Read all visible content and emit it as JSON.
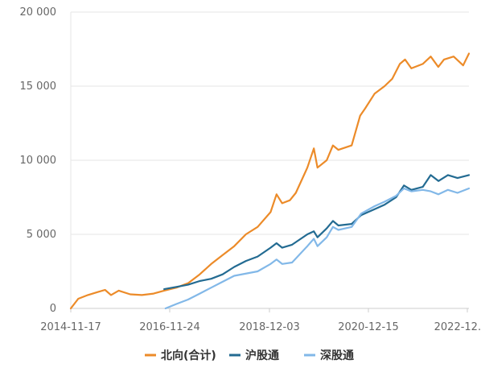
{
  "chart_data": {
    "type": "line",
    "xlabel": "",
    "ylabel": "",
    "x_range": [
      "2014-11-17",
      "2023-06-30"
    ],
    "ylim": [
      0,
      20000
    ],
    "y_ticks": [
      0,
      5000,
      10000,
      15000,
      20000
    ],
    "y_tick_labels": [
      "0",
      "5 000",
      "10 000",
      "15 000",
      "20 000"
    ],
    "x_tick_labels": [
      "2014-11-17",
      "2016-11-24",
      "2018-12-03",
      "2020-12-15",
      "2022-12..."
    ],
    "grid": "horizontal",
    "legend_position": "bottom",
    "colors": {
      "north": "#ec8b29",
      "sh": "#236b92",
      "sz": "#82b8e8",
      "grid": "#e6e6e6",
      "axis": "#cccccc"
    },
    "series": [
      {
        "name": "北向(合计)",
        "color": "#ec8b29",
        "points": [
          [
            "2014-11-17",
            0
          ],
          [
            "2015-01-15",
            650
          ],
          [
            "2015-04-01",
            900
          ],
          [
            "2015-06-15",
            1100
          ],
          [
            "2015-08-15",
            1250
          ],
          [
            "2015-10-01",
            900
          ],
          [
            "2015-12-01",
            1200
          ],
          [
            "2016-03-01",
            950
          ],
          [
            "2016-06-01",
            900
          ],
          [
            "2016-09-01",
            1000
          ],
          [
            "2016-11-24",
            1200
          ],
          [
            "2017-03-01",
            1400
          ],
          [
            "2017-06-01",
            1700
          ],
          [
            "2017-09-01",
            2300
          ],
          [
            "2017-12-01",
            3000
          ],
          [
            "2018-03-01",
            3600
          ],
          [
            "2018-06-01",
            4200
          ],
          [
            "2018-09-01",
            5000
          ],
          [
            "2018-12-03",
            5500
          ],
          [
            "2019-03-15",
            6500
          ],
          [
            "2019-05-01",
            7700
          ],
          [
            "2019-06-15",
            7100
          ],
          [
            "2019-08-15",
            7300
          ],
          [
            "2019-10-01",
            7800
          ],
          [
            "2019-12-31",
            9500
          ],
          [
            "2020-02-20",
            10800
          ],
          [
            "2020-03-20",
            9500
          ],
          [
            "2020-06-01",
            10000
          ],
          [
            "2020-07-20",
            11000
          ],
          [
            "2020-09-01",
            10700
          ],
          [
            "2020-12-15",
            11000
          ],
          [
            "2021-02-20",
            13000
          ],
          [
            "2021-04-01",
            13500
          ],
          [
            "2021-06-15",
            14500
          ],
          [
            "2021-09-01",
            15000
          ],
          [
            "2021-11-01",
            15500
          ],
          [
            "2021-12-31",
            16500
          ],
          [
            "2022-02-10",
            16800
          ],
          [
            "2022-04-01",
            16200
          ],
          [
            "2022-06-30",
            16500
          ],
          [
            "2022-09-01",
            17000
          ],
          [
            "2022-10-31",
            16300
          ],
          [
            "2022-12-15",
            16800
          ],
          [
            "2023-03-01",
            17000
          ],
          [
            "2023-05-15",
            16400
          ],
          [
            "2023-06-30",
            17200
          ]
        ]
      },
      {
        "name": "沪股通",
        "color": "#236b92",
        "points": [
          [
            "2016-11-24",
            1300
          ],
          [
            "2017-03-01",
            1450
          ],
          [
            "2017-06-01",
            1600
          ],
          [
            "2017-09-01",
            1850
          ],
          [
            "2017-12-01",
            2000
          ],
          [
            "2018-03-01",
            2300
          ],
          [
            "2018-06-01",
            2800
          ],
          [
            "2018-09-01",
            3200
          ],
          [
            "2018-12-03",
            3500
          ],
          [
            "2019-03-15",
            4100
          ],
          [
            "2019-05-01",
            4400
          ],
          [
            "2019-06-15",
            4100
          ],
          [
            "2019-09-01",
            4300
          ],
          [
            "2019-12-31",
            5000
          ],
          [
            "2020-02-20",
            5200
          ],
          [
            "2020-03-20",
            4800
          ],
          [
            "2020-06-01",
            5400
          ],
          [
            "2020-07-20",
            5900
          ],
          [
            "2020-09-01",
            5600
          ],
          [
            "2020-12-15",
            5700
          ],
          [
            "2021-03-01",
            6300
          ],
          [
            "2021-06-15",
            6700
          ],
          [
            "2021-09-01",
            7000
          ],
          [
            "2021-12-01",
            7500
          ],
          [
            "2022-02-01",
            8300
          ],
          [
            "2022-04-01",
            8000
          ],
          [
            "2022-06-30",
            8200
          ],
          [
            "2022-09-01",
            9000
          ],
          [
            "2022-11-01",
            8600
          ],
          [
            "2023-01-15",
            9000
          ],
          [
            "2023-04-01",
            8800
          ],
          [
            "2023-06-30",
            9000
          ]
        ]
      },
      {
        "name": "深股通",
        "color": "#82b8e8",
        "points": [
          [
            "2016-12-05",
            0
          ],
          [
            "2017-03-01",
            300
          ],
          [
            "2017-06-01",
            600
          ],
          [
            "2017-09-01",
            1000
          ],
          [
            "2017-12-01",
            1400
          ],
          [
            "2018-03-01",
            1800
          ],
          [
            "2018-06-01",
            2200
          ],
          [
            "2018-12-03",
            2500
          ],
          [
            "2019-03-15",
            3000
          ],
          [
            "2019-05-01",
            3300
          ],
          [
            "2019-06-15",
            3000
          ],
          [
            "2019-09-01",
            3100
          ],
          [
            "2019-12-31",
            4200
          ],
          [
            "2020-02-20",
            4700
          ],
          [
            "2020-03-20",
            4200
          ],
          [
            "2020-06-01",
            4800
          ],
          [
            "2020-07-20",
            5500
          ],
          [
            "2020-09-01",
            5300
          ],
          [
            "2020-12-15",
            5500
          ],
          [
            "2021-03-01",
            6400
          ],
          [
            "2021-06-15",
            6900
          ],
          [
            "2021-09-01",
            7200
          ],
          [
            "2021-12-01",
            7600
          ],
          [
            "2022-02-01",
            8100
          ],
          [
            "2022-04-01",
            7900
          ],
          [
            "2022-06-30",
            8000
          ],
          [
            "2022-09-01",
            7900
          ],
          [
            "2022-11-01",
            7700
          ],
          [
            "2023-01-15",
            8000
          ],
          [
            "2023-04-01",
            7800
          ],
          [
            "2023-06-30",
            8100
          ]
        ]
      }
    ]
  }
}
